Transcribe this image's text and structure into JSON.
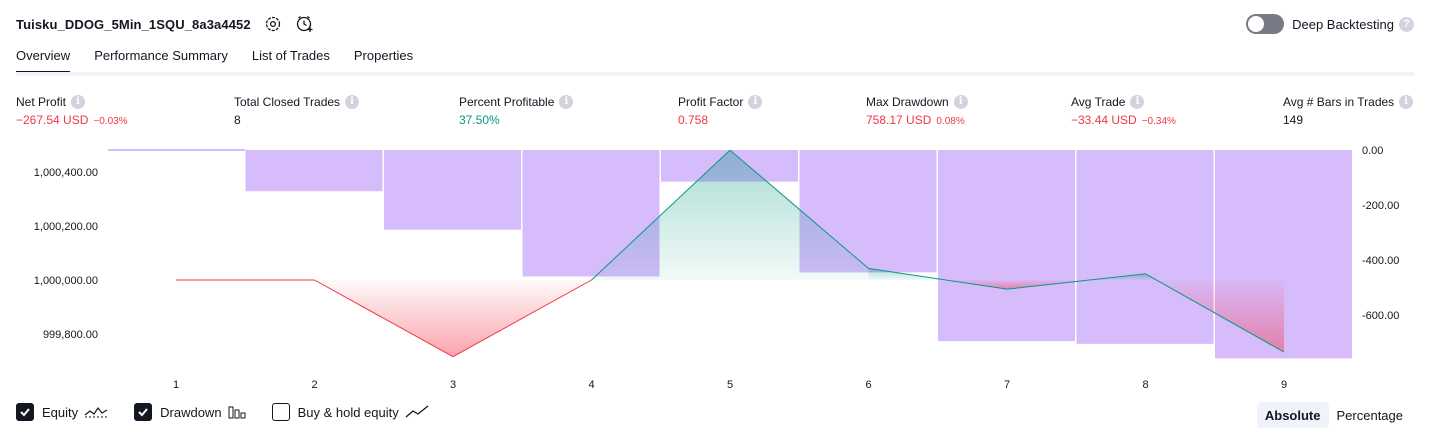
{
  "header": {
    "strategy_name": "Tuisku_DDOG_5Min_1SQU_8a3a4452",
    "settings_icon": "settings-gear-icon",
    "alert_icon": "add-alert-clock-icon",
    "deep_backtesting_label": "Deep Backtesting",
    "deep_backtesting_enabled": false
  },
  "tabs": [
    {
      "label": "Overview",
      "active": true
    },
    {
      "label": "Performance Summary",
      "active": false
    },
    {
      "label": "List of Trades",
      "active": false
    },
    {
      "label": "Properties",
      "active": false
    }
  ],
  "metrics": [
    {
      "label": "Net Profit",
      "value": "−267.54 USD",
      "pct": "−0.03%",
      "tone": "neg"
    },
    {
      "label": "Total Closed Trades",
      "value": "8",
      "pct": "",
      "tone": "neu"
    },
    {
      "label": "Percent Profitable",
      "value": "37.50%",
      "pct": "",
      "tone": "pos"
    },
    {
      "label": "Profit Factor",
      "value": "0.758",
      "pct": "",
      "tone": "neg"
    },
    {
      "label": "Max Drawdown",
      "value": "758.17 USD",
      "pct": "0.08%",
      "tone": "neg"
    },
    {
      "label": "Avg Trade",
      "value": "−33.44 USD",
      "pct": "−0.34%",
      "tone": "neg"
    },
    {
      "label": "Avg # Bars in Trades",
      "value": "149",
      "pct": "",
      "tone": "neu"
    }
  ],
  "chart_data": {
    "type": "line",
    "x": [
      1,
      2,
      3,
      4,
      5,
      6,
      7,
      8,
      9
    ],
    "series": [
      {
        "name": "Equity",
        "values": [
          1000000,
          1000000,
          999716,
          1000000,
          1000481,
          1000043,
          999966,
          1000023,
          999733
        ]
      },
      {
        "name": "Drawdown",
        "values": [
          0,
          -150,
          -290,
          -460,
          -115,
          -445,
          -695,
          -705,
          -758
        ]
      }
    ],
    "left_axis": {
      "ticks": [
        "1,000,400.00",
        "1,000,200.00",
        "1,000,000.00",
        "999,800.00"
      ],
      "tick_values": [
        1000400,
        1000200,
        1000000,
        999800
      ]
    },
    "right_axis": {
      "ticks": [
        "0.00",
        "-200.00",
        "-400.00",
        "-600.00"
      ],
      "tick_values": [
        0,
        -200,
        -400,
        -600
      ]
    },
    "x_ticks": [
      "1",
      "2",
      "3",
      "4",
      "5",
      "6",
      "7",
      "8",
      "9"
    ],
    "colors": {
      "equity_up": "#089981",
      "equity_down": "#f23645",
      "drawdown": "#d7bcfc",
      "grid": "#ffffff"
    }
  },
  "legend": {
    "items": [
      {
        "label": "Equity",
        "checked": true,
        "icon": "equity-line-icon"
      },
      {
        "label": "Drawdown",
        "checked": true,
        "icon": "drawdown-bars-icon"
      },
      {
        "label": "Buy & hold equity",
        "checked": false,
        "icon": "buy-hold-line-icon"
      }
    ]
  },
  "mode": {
    "absolute_label": "Absolute",
    "percentage_label": "Percentage",
    "selected": "Absolute"
  }
}
